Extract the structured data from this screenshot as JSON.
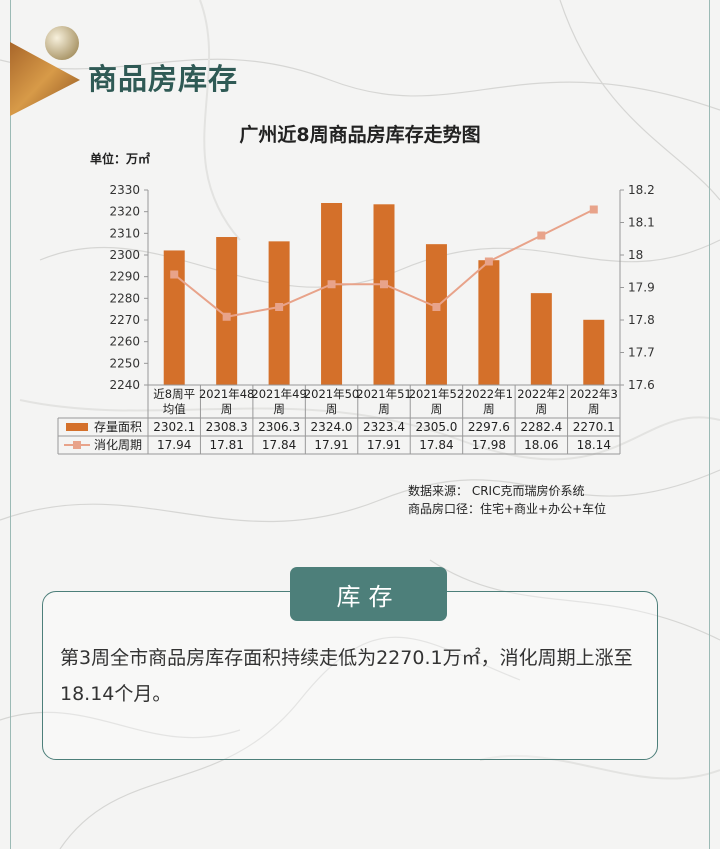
{
  "section": {
    "title": "商品房库存"
  },
  "chart_data": {
    "type": "bar+line",
    "title": "广州近8周商品房库存走势图",
    "unit_label": "单位：万㎡",
    "categories": [
      "近8周平\n均值",
      "2021年48\n周",
      "2021年49\n周",
      "2021年50\n周",
      "2021年51\n周",
      "2021年52\n周",
      "2022年1\n周",
      "2022年2\n周",
      "2022年3\n周"
    ],
    "series": [
      {
        "name": "存量面积",
        "type": "bar",
        "axis": "left",
        "color": "#d4702a",
        "values": [
          2302.1,
          2308.3,
          2306.3,
          2324.0,
          2323.4,
          2305.0,
          2297.6,
          2282.4,
          2270.1
        ],
        "labels": [
          "2302.1",
          "2308.3",
          "2306.3",
          "2324.0",
          "2323.4",
          "2305.0",
          "2297.6",
          "2282.4",
          "2270.1"
        ]
      },
      {
        "name": "消化周期",
        "type": "line",
        "axis": "right",
        "color": "#e8a38a",
        "values": [
          17.94,
          17.81,
          17.84,
          17.91,
          17.91,
          17.84,
          17.98,
          18.06,
          18.14
        ],
        "labels": [
          "17.94",
          "17.81",
          "17.84",
          "17.91",
          "17.91",
          "17.84",
          "17.98",
          "18.06",
          "18.14"
        ]
      }
    ],
    "y_left": {
      "min": 2240,
      "max": 2330,
      "ticks": [
        "2240",
        "2250",
        "2260",
        "2270",
        "2280",
        "2290",
        "2300",
        "2310",
        "2320",
        "2330"
      ]
    },
    "y_right": {
      "min": 17.6,
      "max": 18.2,
      "ticks": [
        "17.6",
        "17.7",
        "17.8",
        "17.9",
        "18",
        "18.1",
        "18.2"
      ]
    },
    "legend": "data-table",
    "grid": false
  },
  "source": {
    "line1": "数据来源： CRIC克而瑞房价系统",
    "line2": "商品房口径：住宅+商业+办公+车位"
  },
  "summary": {
    "tag": "库存",
    "text": "第3周全市商品房库存面积持续走低为2270.1万㎡，消化周期上涨至18.14个月。"
  }
}
